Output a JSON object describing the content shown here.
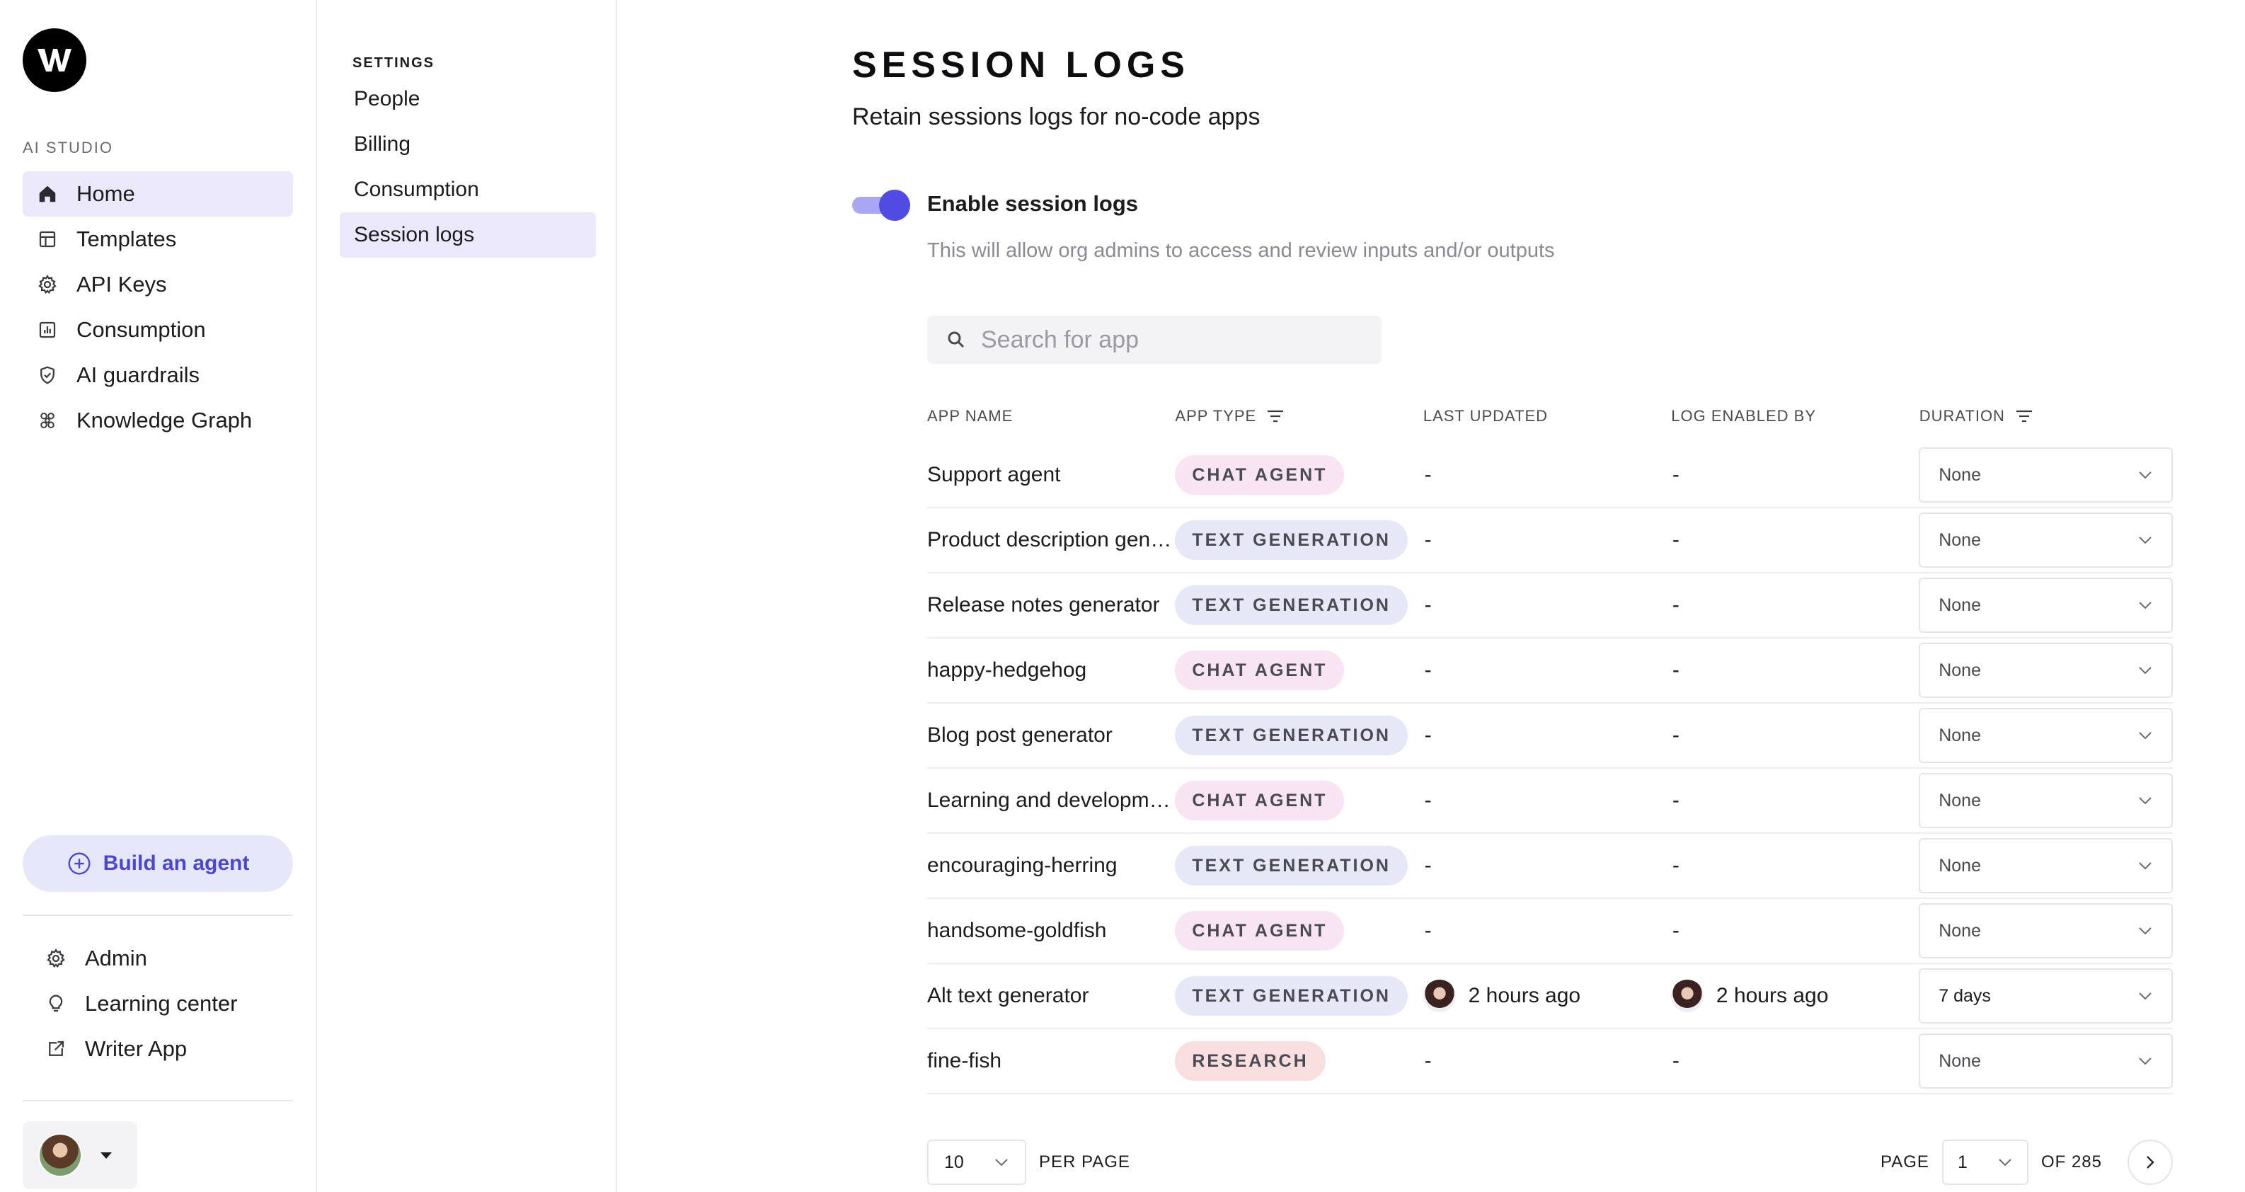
{
  "nav": {
    "section_label": "AI STUDIO",
    "items": [
      {
        "label": "Home",
        "icon": "home-icon",
        "active": true
      },
      {
        "label": "Templates",
        "icon": "templates-icon"
      },
      {
        "label": "API Keys",
        "icon": "api-keys-icon"
      },
      {
        "label": "Consumption",
        "icon": "consumption-icon"
      },
      {
        "label": "AI guardrails",
        "icon": "shield-check-icon"
      },
      {
        "label": "Knowledge Graph",
        "icon": "knowledge-graph-icon"
      }
    ],
    "build_button": "Build an agent",
    "bottom_items": [
      {
        "label": "Admin",
        "icon": "gear-icon"
      },
      {
        "label": "Learning center",
        "icon": "lightbulb-icon"
      },
      {
        "label": "Writer App",
        "icon": "external-link-icon"
      }
    ]
  },
  "settings": {
    "label": "SETTINGS",
    "items": [
      {
        "label": "People"
      },
      {
        "label": "Billing"
      },
      {
        "label": "Consumption"
      },
      {
        "label": "Session logs",
        "active": true
      }
    ]
  },
  "main": {
    "title": "SESSION LOGS",
    "subtitle": "Retain sessions logs for no-code apps",
    "toggle_label": "Enable session logs",
    "toggle_on": true,
    "toggle_help": "This will allow org admins to access and review inputs and/or outputs",
    "search_placeholder": "Search for app",
    "columns": [
      "APP NAME",
      "APP TYPE",
      "LAST UPDATED",
      "LOG ENABLED BY",
      "DURATION"
    ],
    "rows": [
      {
        "name": "Support agent",
        "type": "CHAT AGENT",
        "last_updated": "-",
        "enabled_by": "-",
        "duration": "None"
      },
      {
        "name": "Product description generator",
        "type": "TEXT GENERATION",
        "last_updated": "-",
        "enabled_by": "-",
        "duration": "None"
      },
      {
        "name": "Release notes generator",
        "type": "TEXT GENERATION",
        "last_updated": "-",
        "enabled_by": "-",
        "duration": "None"
      },
      {
        "name": "happy-hedgehog",
        "type": "CHAT AGENT",
        "last_updated": "-",
        "enabled_by": "-",
        "duration": "None"
      },
      {
        "name": "Blog post generator",
        "type": "TEXT GENERATION",
        "last_updated": "-",
        "enabled_by": "-",
        "duration": "None"
      },
      {
        "name": "Learning and development",
        "type": "CHAT AGENT",
        "last_updated": "-",
        "enabled_by": "-",
        "duration": "None"
      },
      {
        "name": "encouraging-herring",
        "type": "TEXT GENERATION",
        "last_updated": "-",
        "enabled_by": "-",
        "duration": "None"
      },
      {
        "name": "handsome-goldfish",
        "type": "CHAT AGENT",
        "last_updated": "-",
        "enabled_by": "-",
        "duration": "None"
      },
      {
        "name": "Alt text generator",
        "type": "TEXT GENERATION",
        "last_updated": "2 hours ago",
        "enabled_by": "2 hours ago",
        "duration": "7 days"
      },
      {
        "name": "fine-fish",
        "type": "RESEARCH",
        "last_updated": "-",
        "enabled_by": "-",
        "duration": "None"
      }
    ],
    "pagination": {
      "per_page_value": "10",
      "per_page_label": "PER PAGE",
      "page_label": "PAGE",
      "page_value": "1",
      "of_label": "OF 285"
    }
  },
  "colors": {
    "accent": "#4f4be3",
    "active_nav_bg": "#ece8fc",
    "chat_badge_bg": "#f8e4f2",
    "text_badge_bg": "#e6e8f8",
    "research_badge_bg": "#f8dede"
  }
}
